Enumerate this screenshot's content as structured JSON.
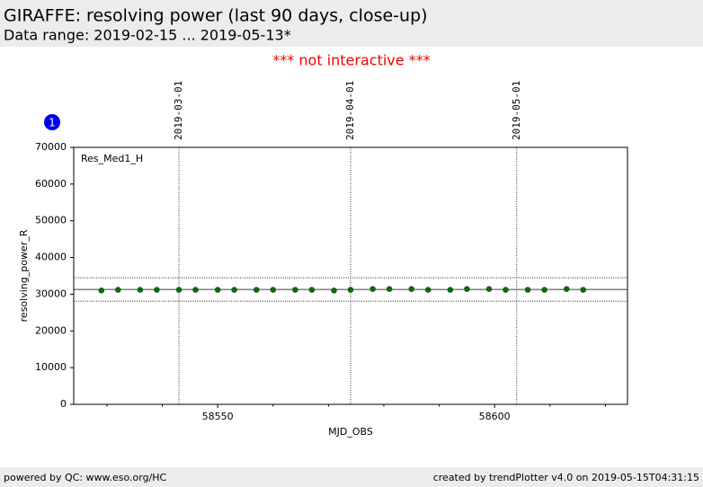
{
  "header": {
    "title": "GIRAFFE: resolving power (last 90 days, close-up)",
    "subtitle": "Data range: 2019-02-15 ... 2019-05-13*"
  },
  "notice": "*** not interactive ***",
  "badge": "1",
  "chart_data": {
    "type": "scatter",
    "annotation": "Res_Med1_H",
    "xlabel": "MJD_OBS",
    "ylabel": "resolving_power_R",
    "x": [
      58529,
      58532,
      58536,
      58539,
      58543,
      58546,
      58550,
      58553,
      58557,
      58560,
      58564,
      58567,
      58571,
      58574,
      58578,
      58581,
      58585,
      58588,
      58592,
      58595,
      58599,
      58602,
      58606,
      58609,
      58613,
      58616
    ],
    "values": [
      31000,
      31200,
      31200,
      31200,
      31200,
      31200,
      31200,
      31200,
      31200,
      31200,
      31200,
      31200,
      31000,
      31200,
      31400,
      31400,
      31400,
      31200,
      31200,
      31400,
      31400,
      31200,
      31200,
      31200,
      31400,
      31200
    ],
    "color": "#126612",
    "reference_lines": [
      {
        "value": 31300,
        "style": "solid"
      },
      {
        "value": 34500,
        "style": "dotted"
      },
      {
        "value": 28100,
        "style": "dotted"
      }
    ],
    "date_markers": [
      {
        "x": 58543,
        "label": "2019-03-01"
      },
      {
        "x": 58574,
        "label": "2019-04-01"
      },
      {
        "x": 58604,
        "label": "2019-05-01"
      }
    ],
    "xlim": [
      58524,
      58624
    ],
    "xticks": [
      58550,
      58600
    ],
    "x_minor_ticks": [
      58530,
      58540,
      58560,
      58570,
      58580,
      58590,
      58610,
      58620
    ],
    "ylim": [
      0,
      70000
    ],
    "yticks": [
      0,
      10000,
      20000,
      30000,
      40000,
      50000,
      60000,
      70000
    ]
  },
  "footer": {
    "left": "powered by QC: www.eso.org/HC",
    "right": "created by trendPlotter v4.0 on 2019-05-15T04:31:15"
  }
}
